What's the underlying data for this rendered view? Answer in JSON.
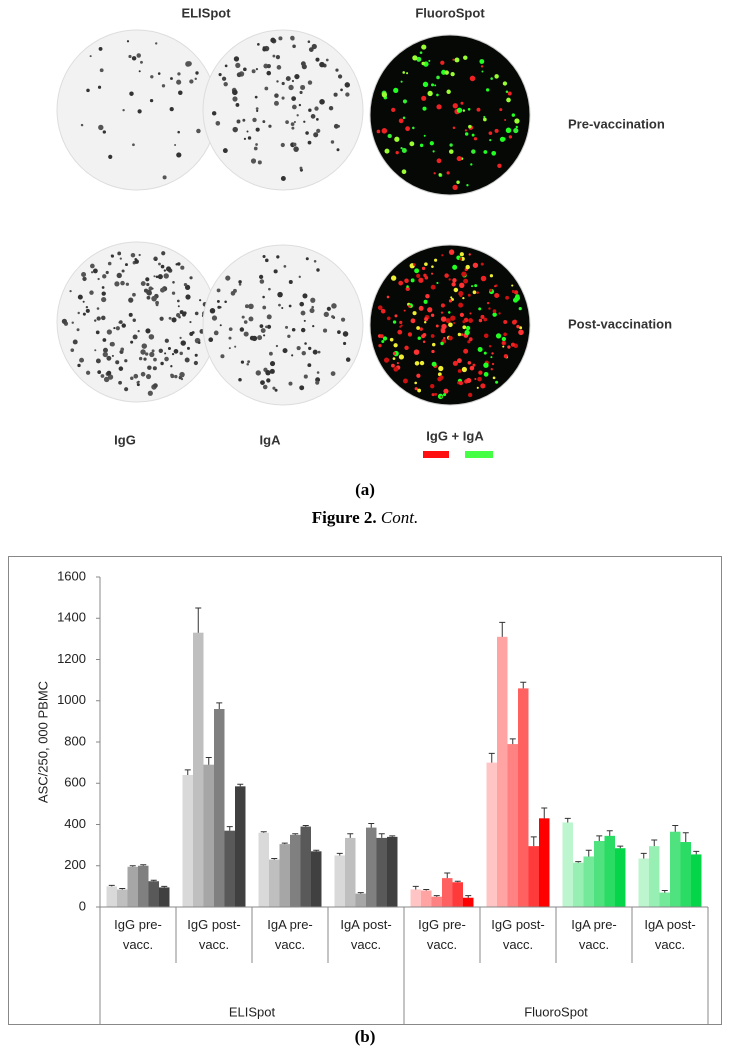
{
  "figure": {
    "columns": [
      "ELISpot",
      "FluoroSpot"
    ],
    "rows": [
      "Pre-vaccination",
      "Post-vaccination"
    ],
    "isotypes": [
      "IgG",
      "IgA",
      "IgG + IgA"
    ],
    "panel_a": "(a)",
    "caption": "Figure 2.",
    "caption_note": "Cont.",
    "panel_b": "(b)"
  },
  "chart_data": {
    "type": "bar",
    "ylabel": "ASC/250, 000 PBMC",
    "ylim": [
      0,
      1600
    ],
    "yticks": [
      0,
      200,
      400,
      600,
      800,
      1000,
      1200,
      1400,
      1600
    ],
    "groups": [
      {
        "name": "ELISpot",
        "categories": [
          {
            "label": "IgG pre-vacc.",
            "values": [
              100,
              85,
              195,
              200,
              125,
              95
            ],
            "errors": [
              5,
              5,
              5,
              5,
              5,
              5
            ],
            "colors": [
              "#d9d9d9",
              "#bfbfbf",
              "#a6a6a6",
              "#808080",
              "#595959",
              "#404040"
            ]
          },
          {
            "label": "IgG post-vacc.",
            "values": [
              640,
              1330,
              690,
              960,
              370,
              585
            ],
            "errors": [
              25,
              120,
              35,
              30,
              20,
              10
            ],
            "colors": [
              "#d9d9d9",
              "#bfbfbf",
              "#a6a6a6",
              "#808080",
              "#595959",
              "#404040"
            ]
          },
          {
            "label": "IgA pre-vacc.",
            "values": [
              360,
              230,
              305,
              350,
              390,
              270
            ],
            "errors": [
              5,
              5,
              5,
              5,
              5,
              5
            ],
            "colors": [
              "#d9d9d9",
              "#bfbfbf",
              "#a6a6a6",
              "#808080",
              "#595959",
              "#404040"
            ]
          },
          {
            "label": "IgA post-vacc.",
            "values": [
              250,
              335,
              65,
              385,
              335,
              340
            ],
            "errors": [
              10,
              20,
              5,
              20,
              20,
              5
            ],
            "colors": [
              "#d9d9d9",
              "#bfbfbf",
              "#a6a6a6",
              "#808080",
              "#595959",
              "#404040"
            ]
          }
        ]
      },
      {
        "name": "FluoroSpot",
        "categories": [
          {
            "label": "IgG pre-vacc.",
            "values": [
              85,
              80,
              50,
              140,
              120,
              45
            ],
            "errors": [
              15,
              5,
              5,
              25,
              5,
              10
            ],
            "colors": [
              "#ffc4c4",
              "#ffa3a3",
              "#ff8282",
              "#ff6060",
              "#ff3a3a",
              "#ff0000"
            ]
          },
          {
            "label": "IgG post-vacc.",
            "values": [
              700,
              1310,
              790,
              1060,
              295,
              430
            ],
            "errors": [
              45,
              70,
              25,
              30,
              45,
              50
            ],
            "colors": [
              "#ffc4c4",
              "#ffa3a3",
              "#ff8282",
              "#ff6060",
              "#ff3a3a",
              "#ff0000"
            ]
          },
          {
            "label": "IgA pre-vacc.",
            "values": [
              410,
              215,
              245,
              320,
              345,
              285
            ],
            "errors": [
              20,
              5,
              30,
              25,
              25,
              10
            ],
            "colors": [
              "#bdf5cf",
              "#98efb4",
              "#73e999",
              "#4fe27e",
              "#2adc63",
              "#05d548"
            ]
          },
          {
            "label": "IgA post-vacc.",
            "values": [
              235,
              295,
              70,
              365,
              315,
              255
            ],
            "errors": [
              25,
              30,
              10,
              30,
              45,
              15
            ],
            "colors": [
              "#bdf5cf",
              "#98efb4",
              "#73e999",
              "#4fe27e",
              "#2adc63",
              "#05d548"
            ]
          }
        ]
      }
    ]
  }
}
